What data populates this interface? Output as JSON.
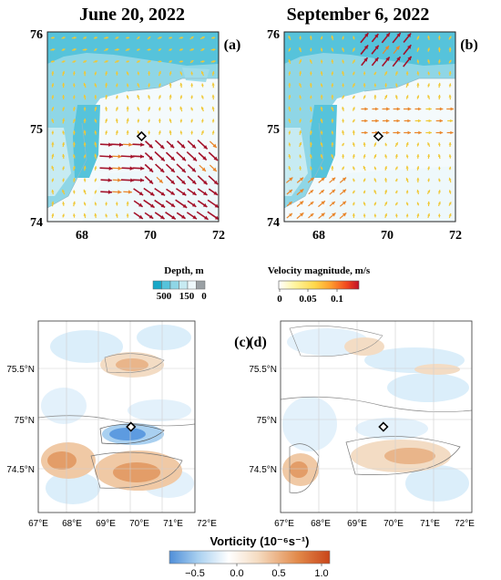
{
  "panels_top": [
    {
      "title": "June 20, 2022",
      "tag": "(a)"
    },
    {
      "title": "September 6, 2022",
      "tag": "(b)"
    }
  ],
  "top_axes": {
    "y_ticks": [
      "76",
      "75",
      "74"
    ],
    "x_ticks": [
      "68",
      "70",
      "72"
    ],
    "lon_range": [
      67,
      72
    ],
    "lat_range": [
      74,
      76
    ]
  },
  "depth_legend": {
    "title": "Depth, m",
    "ticks": [
      "500",
      "150",
      "0"
    ],
    "colors": [
      "#18a7c7",
      "#56c3db",
      "#8fd6e6",
      "#c7ebf2",
      "#eef8fb",
      "#9aa0a4"
    ]
  },
  "velocity_legend": {
    "title": "Velocity magnitude, m/s",
    "ticks": [
      "0",
      "0.05",
      "0.1"
    ],
    "range": [
      0,
      0.14
    ],
    "stops": [
      "#ffffff",
      "#fff5a0",
      "#ffd84a",
      "#ff9d2e",
      "#f2471e",
      "#c0122a"
    ]
  },
  "panels_bottom": [
    {
      "tag": "(c)"
    },
    {
      "tag": "(d)"
    }
  ],
  "bottom_axes": {
    "y_ticks": [
      "75.5°N",
      "75°N",
      "74.5°N"
    ],
    "x_ticks": [
      "67°E",
      "68°E",
      "69°E",
      "70°E",
      "71°E",
      "72°E"
    ],
    "lon_range": [
      67,
      72
    ],
    "lat_range": [
      74.05,
      75.95
    ]
  },
  "vorticity_legend": {
    "title": "Vorticity (10⁻⁶s⁻¹)",
    "ticks": [
      "−0.5",
      "0.0",
      "0.5",
      "1.0"
    ],
    "range": [
      -0.7,
      1.2
    ]
  },
  "station": {
    "lon": 69.75,
    "lat": 74.9
  },
  "colors": {
    "vort_neg_strong": "#3f8fd8",
    "vort_neg": "#a9d0f0",
    "vort_pos": "#f0c9a5",
    "vort_pos_strong": "#df8f55",
    "arrow_strong": "#a4122a",
    "arrow_weak": "#f0c836"
  }
}
